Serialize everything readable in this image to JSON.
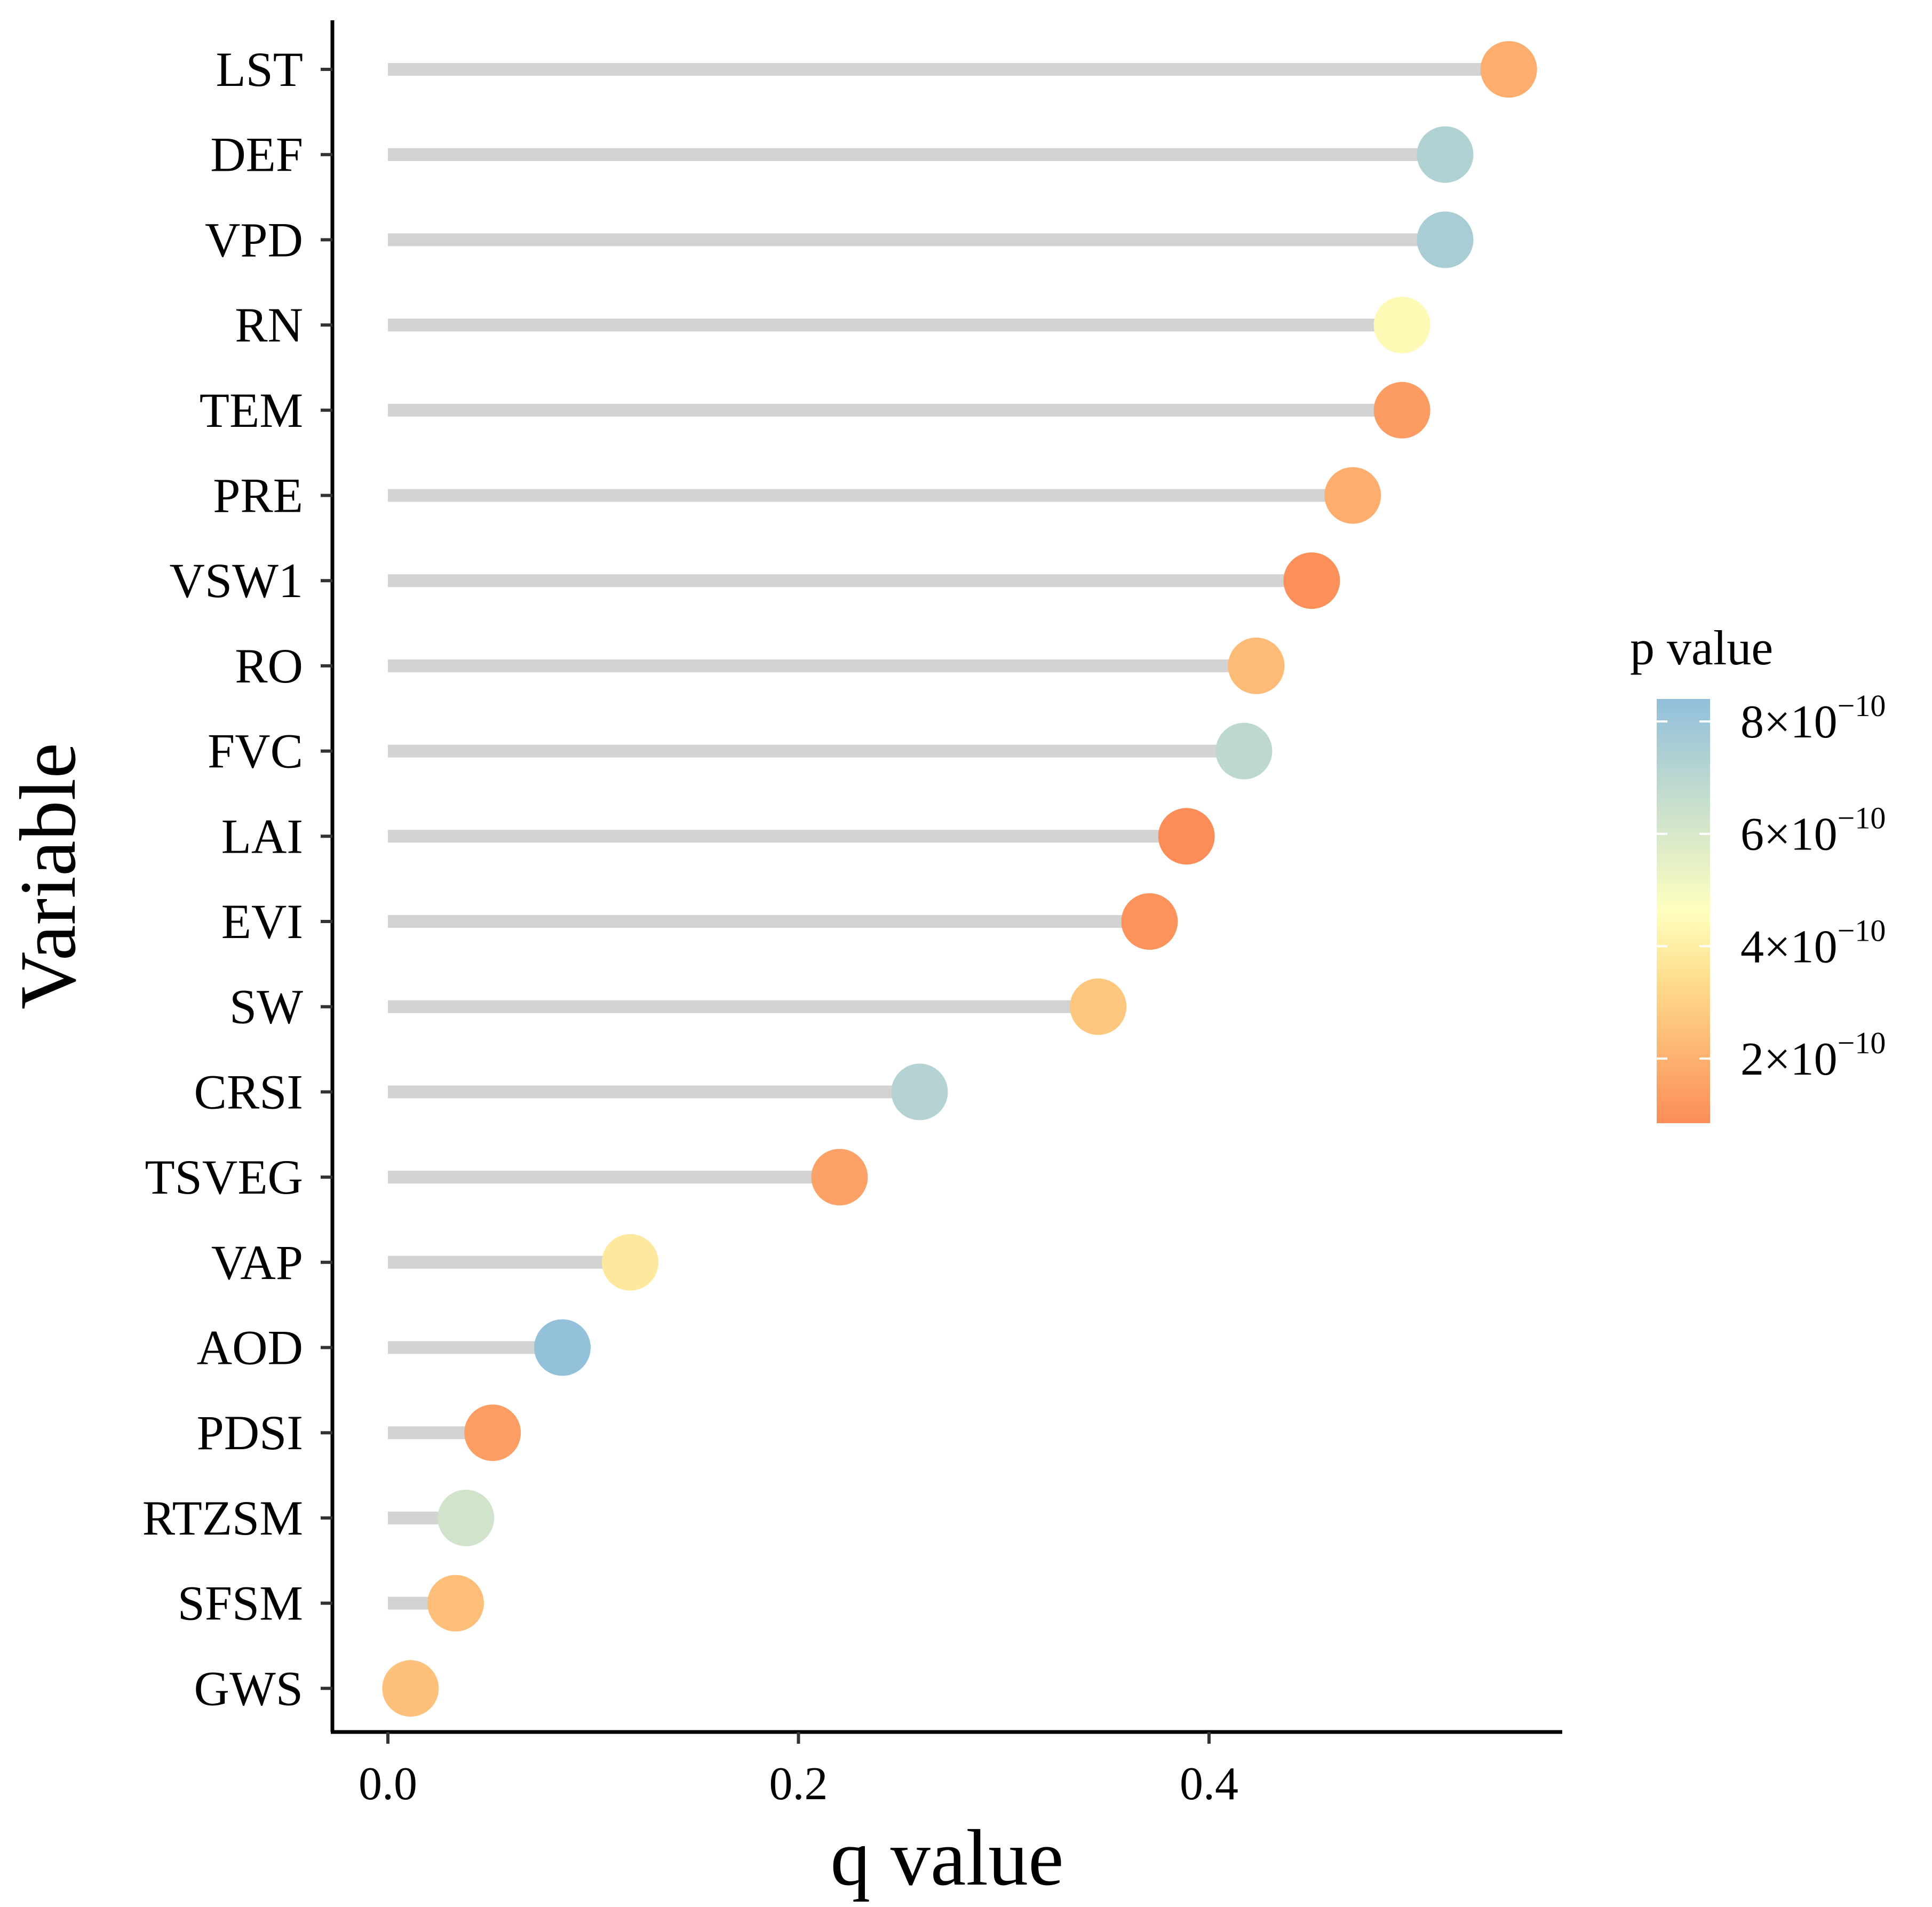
{
  "chart_data": {
    "type": "lollipop",
    "xlabel": "q value",
    "ylabel": "Variable",
    "xlim": [
      -0.027,
      0.574
    ],
    "x_ticks": [
      0.0,
      0.2,
      0.4
    ],
    "x_tick_labels": [
      "0.0",
      "0.2",
      "0.4"
    ],
    "categories": [
      "LST",
      "DEF",
      "VPD",
      "RN",
      "TEM",
      "PRE",
      "VSW1",
      "RO",
      "FVC",
      "LAI",
      "EVI",
      "SW",
      "CRSI",
      "TSVEG",
      "VAP",
      "AOD",
      "PDSI",
      "RTZSM",
      "SFSM",
      "GWS"
    ],
    "values": [
      0.546,
      0.515,
      0.515,
      0.494,
      0.494,
      0.47,
      0.45,
      0.423,
      0.417,
      0.389,
      0.371,
      0.346,
      0.259,
      0.22,
      0.118,
      0.085,
      0.051,
      0.038,
      0.033,
      0.011
    ],
    "p_values": [
      1.9e-10,
      7.3e-10,
      7.6e-10,
      4.4e-10,
      1.3e-10,
      1.9e-10,
      9e-11,
      2.3e-10,
      6.9e-10,
      8e-11,
      1e-10,
      2.7e-10,
      7.2e-10,
      1.5e-10,
      3.8e-10,
      8.3e-10,
      1.4e-10,
      6.2e-10,
      2.4e-10,
      2.5e-10
    ],
    "legend": {
      "title": "p value",
      "position": "right",
      "range": [
        8.5e-11,
        8.4e-10
      ],
      "ticks": [
        2e-10,
        4e-10,
        6e-10,
        8e-10
      ],
      "tick_labels": [
        {
          "base": "2×10",
          "exp": "−10"
        },
        {
          "base": "4×10",
          "exp": "−10"
        },
        {
          "base": "6×10",
          "exp": "−10"
        },
        {
          "base": "8×10",
          "exp": "−10"
        }
      ],
      "colors": [
        "#fc8d59",
        "#fee090",
        "#ffffbf",
        "#91bfdb"
      ]
    },
    "segment_color": "#d3d3d3",
    "grid": false
  }
}
